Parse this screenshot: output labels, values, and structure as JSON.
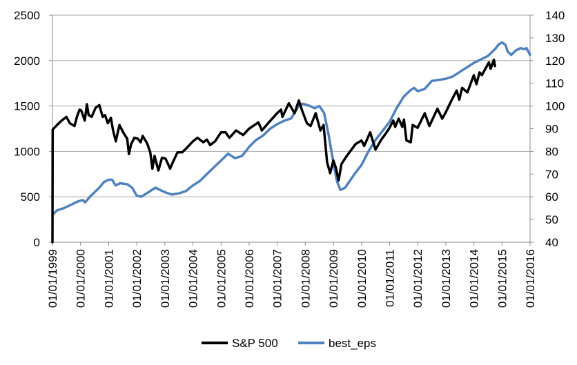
{
  "chart_data": {
    "type": "line",
    "x_tick_labels": [
      "01/01/1999",
      "01/01/2000",
      "01/01/2001",
      "01/01/2002",
      "01/01/2003",
      "01/01/2004",
      "01/01/2005",
      "01/01/2006",
      "01/01/2007",
      "01/01/2008",
      "01/01/2009",
      "01/01/2010",
      "01/01/2011",
      "01/01/2012",
      "01/01/2013",
      "01/01/2014",
      "01/01/2015",
      "01/01/2016"
    ],
    "xlim": [
      "1999-01-01",
      "2016-01-01"
    ],
    "y_left": {
      "ylim": [
        0,
        2500
      ],
      "ticks": [
        0,
        500,
        1000,
        1500,
        2000,
        2500
      ],
      "tick_labels": [
        "0",
        "500",
        "1000",
        "1500",
        "2000",
        "2500"
      ]
    },
    "y_right": {
      "ylim": [
        40,
        140
      ],
      "ticks": [
        40,
        50,
        60,
        70,
        80,
        90,
        100,
        110,
        120,
        130,
        140
      ],
      "tick_labels": [
        "40",
        "50",
        "60",
        "70",
        "80",
        "90",
        "100",
        "110",
        "120",
        "130",
        "140"
      ]
    },
    "grid": true,
    "legend_position": "bottom",
    "series": [
      {
        "name": "S&P 500",
        "axis": "left",
        "color": "#000000",
        "points": [
          [
            "1999-01-01",
            0
          ],
          [
            "1999-01-04",
            1240
          ],
          [
            "1999-03-01",
            1290
          ],
          [
            "1999-05-01",
            1340
          ],
          [
            "1999-07-01",
            1380
          ],
          [
            "1999-08-15",
            1310
          ],
          [
            "1999-10-15",
            1280
          ],
          [
            "1999-11-15",
            1380
          ],
          [
            "1999-12-20",
            1460
          ],
          [
            "2000-01-10",
            1450
          ],
          [
            "2000-02-25",
            1340
          ],
          [
            "2000-03-24",
            1520
          ],
          [
            "2000-04-15",
            1400
          ],
          [
            "2000-05-25",
            1380
          ],
          [
            "2000-07-15",
            1480
          ],
          [
            "2000-09-01",
            1510
          ],
          [
            "2000-10-15",
            1380
          ],
          [
            "2000-11-15",
            1400
          ],
          [
            "2000-12-20",
            1310
          ],
          [
            "2001-01-30",
            1370
          ],
          [
            "2001-02-25",
            1240
          ],
          [
            "2001-04-04",
            1110
          ],
          [
            "2001-05-20",
            1290
          ],
          [
            "2001-07-15",
            1200
          ],
          [
            "2001-08-30",
            1140
          ],
          [
            "2001-09-21",
            970
          ],
          [
            "2001-10-20",
            1080
          ],
          [
            "2001-12-01",
            1150
          ],
          [
            "2002-01-15",
            1140
          ],
          [
            "2002-02-20",
            1100
          ],
          [
            "2002-03-20",
            1170
          ],
          [
            "2002-05-15",
            1090
          ],
          [
            "2002-06-25",
            990
          ],
          [
            "2002-07-23",
            810
          ],
          [
            "2002-08-20",
            950
          ],
          [
            "2002-10-09",
            790
          ],
          [
            "2002-11-25",
            930
          ],
          [
            "2003-01-10",
            920
          ],
          [
            "2003-03-11",
            810
          ],
          [
            "2003-04-15",
            880
          ],
          [
            "2003-06-15",
            990
          ],
          [
            "2003-08-15",
            990
          ],
          [
            "2003-10-15",
            1040
          ],
          [
            "2003-12-31",
            1110
          ],
          [
            "2004-03-01",
            1150
          ],
          [
            "2004-05-15",
            1100
          ],
          [
            "2004-07-01",
            1130
          ],
          [
            "2004-08-12",
            1070
          ],
          [
            "2004-10-15",
            1110
          ],
          [
            "2004-12-31",
            1210
          ],
          [
            "2005-03-01",
            1210
          ],
          [
            "2005-04-20",
            1150
          ],
          [
            "2005-07-15",
            1230
          ],
          [
            "2005-10-15",
            1180
          ],
          [
            "2005-12-31",
            1250
          ],
          [
            "2006-05-01",
            1320
          ],
          [
            "2006-06-15",
            1230
          ],
          [
            "2006-09-15",
            1320
          ],
          [
            "2006-12-31",
            1420
          ],
          [
            "2007-02-20",
            1460
          ],
          [
            "2007-03-10",
            1380
          ],
          [
            "2007-06-01",
            1530
          ],
          [
            "2007-08-15",
            1420
          ],
          [
            "2007-10-09",
            1560
          ],
          [
            "2007-11-25",
            1440
          ],
          [
            "2008-01-22",
            1310
          ],
          [
            "2008-03-10",
            1280
          ],
          [
            "2008-05-15",
            1420
          ],
          [
            "2008-07-15",
            1230
          ],
          [
            "2008-08-25",
            1290
          ],
          [
            "2008-10-10",
            880
          ],
          [
            "2008-11-20",
            760
          ],
          [
            "2008-12-31",
            900
          ],
          [
            "2009-02-01",
            820
          ],
          [
            "2009-03-09",
            680
          ],
          [
            "2009-04-15",
            860
          ],
          [
            "2009-06-15",
            940
          ],
          [
            "2009-08-15",
            1010
          ],
          [
            "2009-10-15",
            1080
          ],
          [
            "2009-12-31",
            1120
          ],
          [
            "2010-02-05",
            1060
          ],
          [
            "2010-04-23",
            1210
          ],
          [
            "2010-07-02",
            1020
          ],
          [
            "2010-09-15",
            1130
          ],
          [
            "2010-11-15",
            1200
          ],
          [
            "2010-12-31",
            1260
          ],
          [
            "2011-02-18",
            1340
          ],
          [
            "2011-03-15",
            1270
          ],
          [
            "2011-04-29",
            1360
          ],
          [
            "2011-06-15",
            1270
          ],
          [
            "2011-07-07",
            1350
          ],
          [
            "2011-08-08",
            1120
          ],
          [
            "2011-10-03",
            1100
          ],
          [
            "2011-10-28",
            1290
          ],
          [
            "2011-12-31",
            1260
          ],
          [
            "2012-04-02",
            1420
          ],
          [
            "2012-06-01",
            1280
          ],
          [
            "2012-09-14",
            1470
          ],
          [
            "2012-11-15",
            1360
          ],
          [
            "2012-12-31",
            1430
          ],
          [
            "2013-03-15",
            1560
          ],
          [
            "2013-05-21",
            1670
          ],
          [
            "2013-06-24",
            1570
          ],
          [
            "2013-08-01",
            1700
          ],
          [
            "2013-10-08",
            1650
          ],
          [
            "2013-12-31",
            1840
          ],
          [
            "2014-02-03",
            1740
          ],
          [
            "2014-03-15",
            1870
          ],
          [
            "2014-04-15",
            1840
          ],
          [
            "2014-07-15",
            1980
          ],
          [
            "2014-08-07",
            1910
          ],
          [
            "2014-09-18",
            2010
          ],
          [
            "2014-10-01",
            1940
          ]
        ]
      },
      {
        "name": "best_eps",
        "axis": "right",
        "color": "#4f81bd",
        "points": [
          [
            "1999-01-01",
            52
          ],
          [
            "1999-03-01",
            54
          ],
          [
            "1999-06-01",
            55
          ],
          [
            "1999-09-01",
            56.5
          ],
          [
            "1999-12-01",
            58
          ],
          [
            "2000-02-01",
            58.5
          ],
          [
            "2000-03-01",
            57.5
          ],
          [
            "2000-05-01",
            60
          ],
          [
            "2000-07-01",
            62
          ],
          [
            "2000-09-01",
            64
          ],
          [
            "2000-11-01",
            66.5
          ],
          [
            "2001-01-01",
            67.5
          ],
          [
            "2001-02-15",
            67.5
          ],
          [
            "2001-04-01",
            65
          ],
          [
            "2001-06-01",
            66
          ],
          [
            "2001-09-01",
            65.5
          ],
          [
            "2001-11-01",
            64
          ],
          [
            "2002-01-01",
            60.5
          ],
          [
            "2002-03-01",
            60
          ],
          [
            "2002-06-01",
            62
          ],
          [
            "2002-09-01",
            64
          ],
          [
            "2002-11-01",
            63
          ],
          [
            "2003-01-01",
            62
          ],
          [
            "2003-04-01",
            61
          ],
          [
            "2003-07-01",
            61.5
          ],
          [
            "2003-10-01",
            62.5
          ],
          [
            "2004-01-01",
            65
          ],
          [
            "2004-04-01",
            67
          ],
          [
            "2004-07-01",
            70
          ],
          [
            "2004-10-01",
            73
          ],
          [
            "2005-01-01",
            76
          ],
          [
            "2005-04-01",
            79
          ],
          [
            "2005-07-01",
            77
          ],
          [
            "2005-10-01",
            78
          ],
          [
            "2006-01-01",
            82
          ],
          [
            "2006-04-01",
            85
          ],
          [
            "2006-07-01",
            87
          ],
          [
            "2006-10-01",
            90
          ],
          [
            "2007-01-01",
            92
          ],
          [
            "2007-04-01",
            93.5
          ],
          [
            "2007-07-01",
            94.5
          ],
          [
            "2007-09-01",
            98
          ],
          [
            "2007-10-15",
            100.5
          ],
          [
            "2007-12-01",
            101
          ],
          [
            "2008-03-01",
            100
          ],
          [
            "2008-05-01",
            99
          ],
          [
            "2008-07-01",
            100
          ],
          [
            "2008-09-01",
            97
          ],
          [
            "2008-11-01",
            87
          ],
          [
            "2009-01-01",
            75
          ],
          [
            "2009-02-15",
            67
          ],
          [
            "2009-04-01",
            63
          ],
          [
            "2009-06-01",
            64
          ],
          [
            "2009-08-01",
            67
          ],
          [
            "2009-10-01",
            70
          ],
          [
            "2010-01-01",
            74
          ],
          [
            "2010-04-01",
            80
          ],
          [
            "2010-07-01",
            85
          ],
          [
            "2010-10-01",
            89
          ],
          [
            "2011-01-01",
            93
          ],
          [
            "2011-04-01",
            99
          ],
          [
            "2011-07-01",
            104
          ],
          [
            "2011-10-01",
            107
          ],
          [
            "2011-11-15",
            108
          ],
          [
            "2012-01-01",
            106.5
          ],
          [
            "2012-04-01",
            107.5
          ],
          [
            "2012-07-01",
            111
          ],
          [
            "2012-10-01",
            111.5
          ],
          [
            "2013-01-01",
            112
          ],
          [
            "2013-04-01",
            113
          ],
          [
            "2013-07-01",
            115
          ],
          [
            "2013-10-01",
            117
          ],
          [
            "2014-01-01",
            119
          ],
          [
            "2014-04-01",
            120.5
          ],
          [
            "2014-07-01",
            122
          ],
          [
            "2014-10-01",
            125
          ],
          [
            "2014-11-15",
            127
          ],
          [
            "2015-01-01",
            128
          ],
          [
            "2015-02-15",
            127
          ],
          [
            "2015-03-15",
            124
          ],
          [
            "2015-05-01",
            122.5
          ],
          [
            "2015-07-01",
            124.5
          ],
          [
            "2015-09-01",
            125.5
          ],
          [
            "2015-10-15",
            125
          ],
          [
            "2015-11-15",
            125.5
          ],
          [
            "2016-01-01",
            122.5
          ]
        ]
      }
    ]
  }
}
